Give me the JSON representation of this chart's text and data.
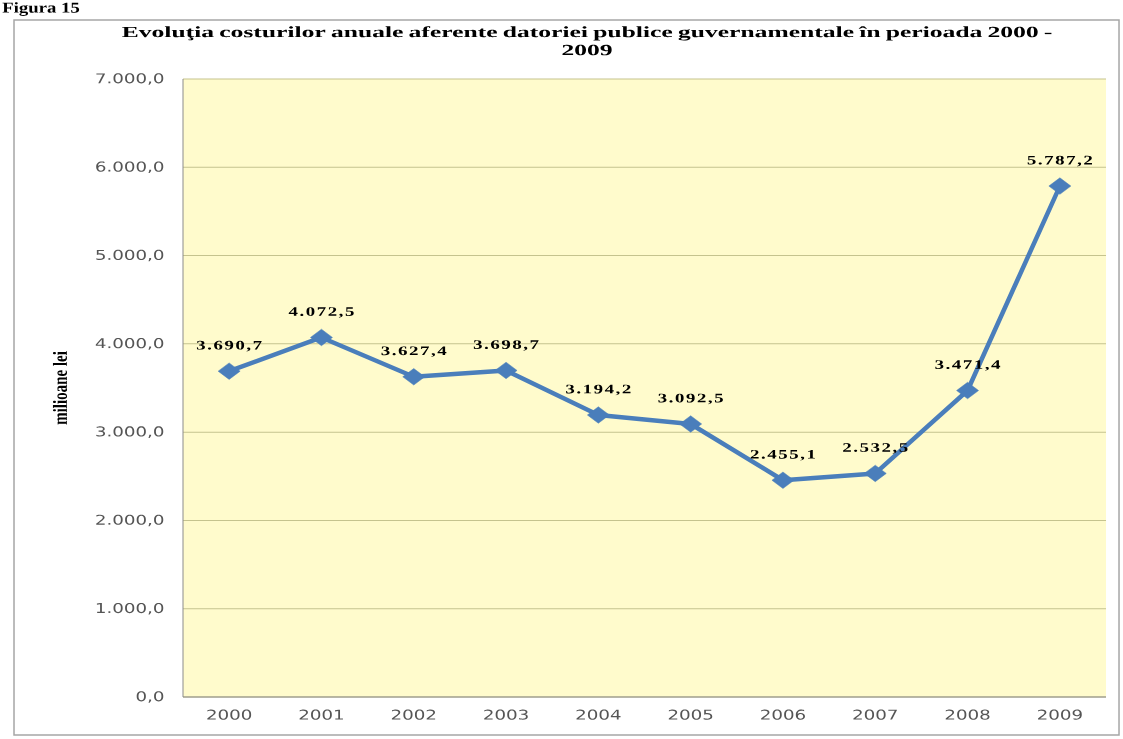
{
  "chart_data": {
    "type": "line",
    "title": "Evoluţia costurilor anuale aferente datoriei publice guvernamentale în perioada 2000 - 2009",
    "ylabel": "milioane lei",
    "annotations": [
      "Figura 15"
    ],
    "categories": [
      "2000",
      "2001",
      "2002",
      "2003",
      "2004",
      "2005",
      "2006",
      "2007",
      "2008",
      "2009"
    ],
    "values": [
      3690.7,
      4072.5,
      3627.4,
      3698.7,
      3194.2,
      3092.5,
      2455.1,
      2532.5,
      3471.4,
      5787.2
    ],
    "value_labels": [
      "3.690,7",
      "4.072,5",
      "3.627,4",
      "3.698,7",
      "3.194,2",
      "3.092,5",
      "2.455,1",
      "2.532,5",
      "3.471,4",
      "5.787,2"
    ],
    "color": "#4a7ebb",
    "ylim": [
      0,
      7000
    ],
    "yticks": [
      {
        "value": 0,
        "label": "0,0"
      },
      {
        "value": 1000,
        "label": "1.000,0"
      },
      {
        "value": 2000,
        "label": "2.000,0"
      },
      {
        "value": 3000,
        "label": "3.000,0"
      },
      {
        "value": 4000,
        "label": "4.000,0"
      },
      {
        "value": 5000,
        "label": "5.000,0"
      },
      {
        "value": 6000,
        "label": "6.000,0"
      },
      {
        "value": 7000,
        "label": "7.000,0"
      }
    ],
    "grid": "y",
    "marker": "diamond",
    "line_style": "solid"
  }
}
